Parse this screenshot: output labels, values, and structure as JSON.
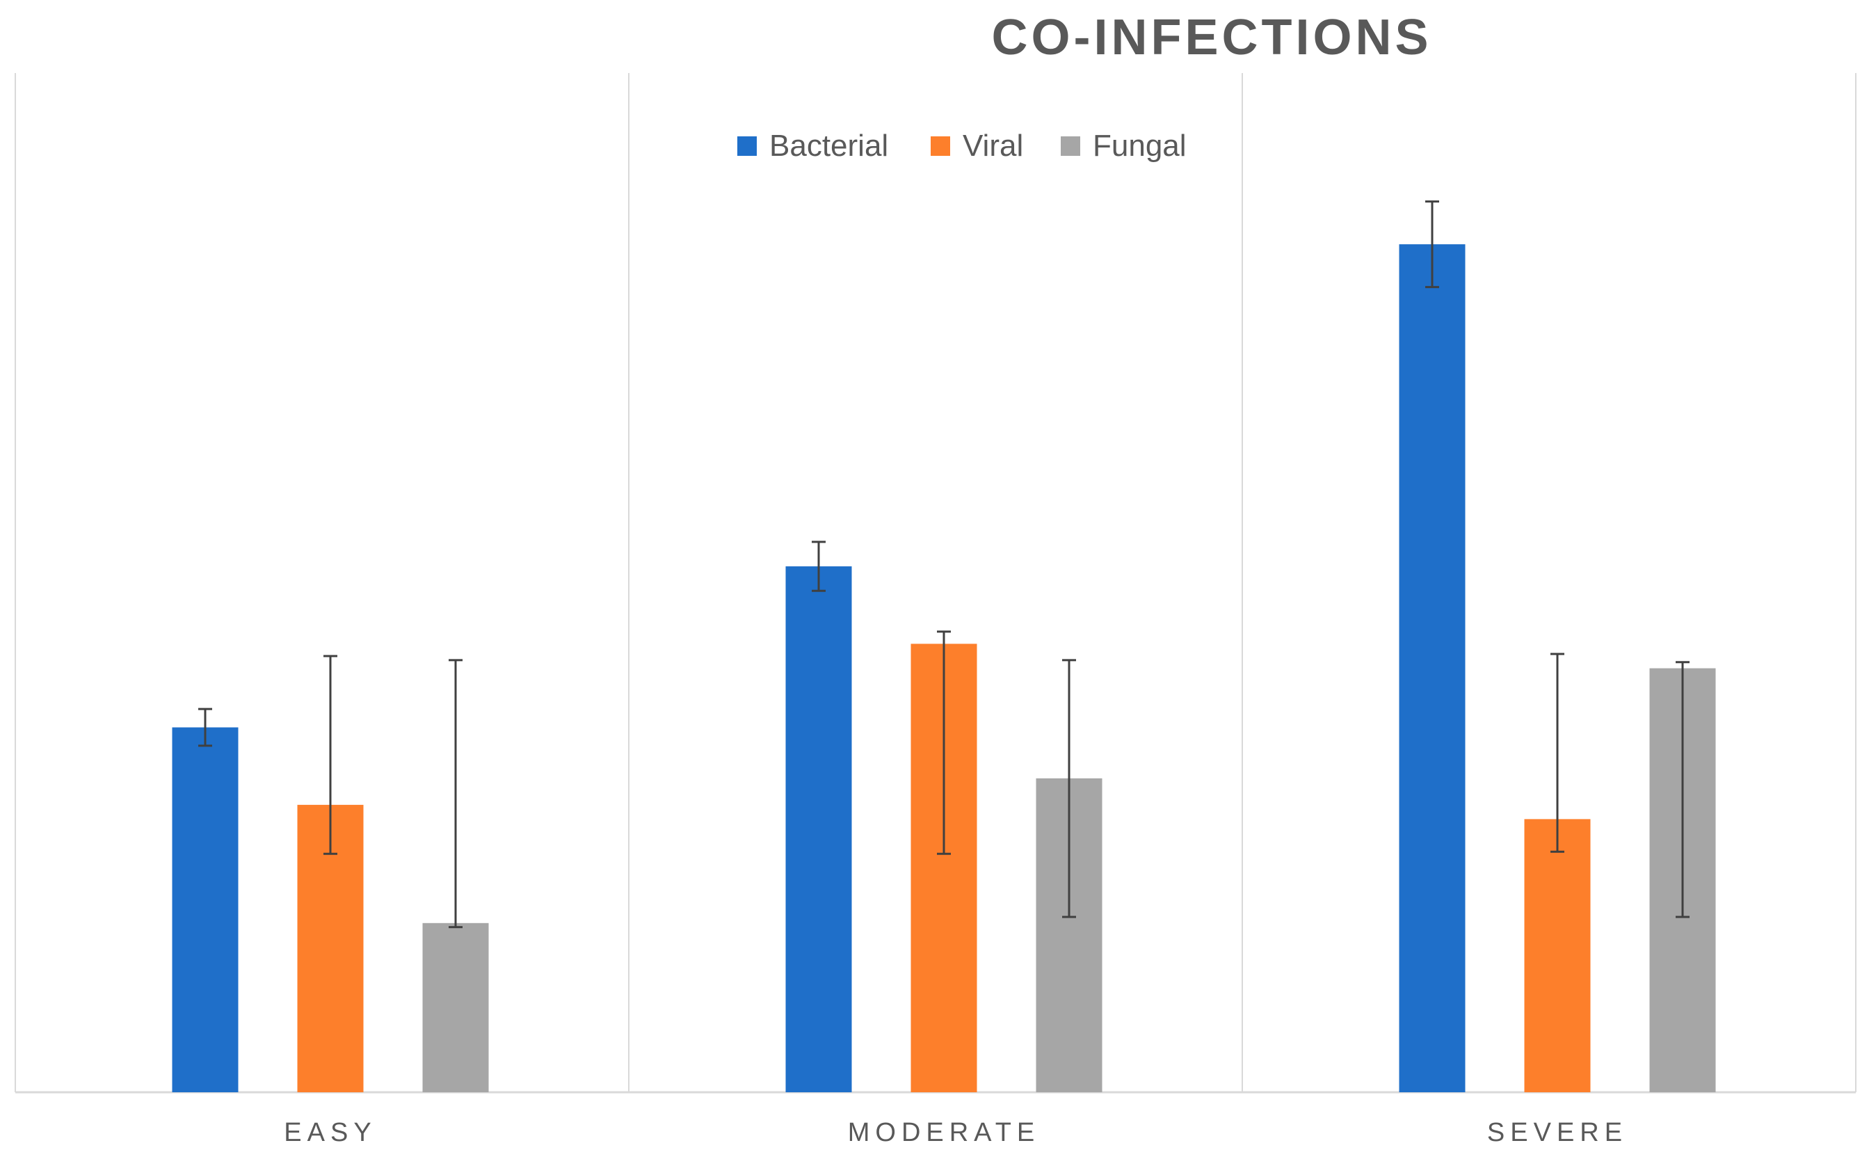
{
  "chart_data": {
    "type": "bar",
    "title": "CO-INFECTIONS",
    "categories": [
      "EASY",
      "MODERATE",
      "SEVERE"
    ],
    "series": [
      {
        "name": "Bacterial",
        "color": "#1f6fc9",
        "values": [
          1.79,
          2.58,
          4.16
        ],
        "error": [
          0.09,
          0.12,
          0.21
        ]
      },
      {
        "name": "Viral",
        "color": "#fd7f2b",
        "values": [
          1.41,
          2.2,
          1.34
        ],
        "error_low": [
          0.24,
          1.03,
          0.16
        ],
        "error_high": [
          0.73,
          0.06,
          0.81
        ]
      },
      {
        "name": "Fungal",
        "color": "#a6a6a6",
        "values": [
          0.83,
          1.54,
          2.08
        ],
        "error_low": [
          0.02,
          0.68,
          1.22
        ],
        "error_high": [
          1.29,
          0.58,
          0.03
        ]
      }
    ],
    "xlabel": "",
    "ylabel": "",
    "ylim": [
      0,
      5
    ],
    "grid": "vertical separators between categories",
    "legend": "top-center"
  }
}
